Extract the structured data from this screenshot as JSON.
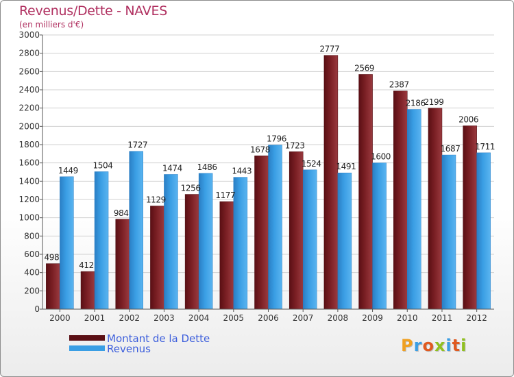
{
  "header": {
    "title": "Revenus/Dette - NAVES",
    "subtitle": "(en milliers d'€)"
  },
  "colors": {
    "dette": "#7a1f24",
    "revenus": "#3a9ee4",
    "title": "#b03060",
    "legend_text": "#3c5edc"
  },
  "chart_data": {
    "type": "bar",
    "title": "Revenus/Dette - NAVES",
    "subtitle": "(en milliers d'€)",
    "categories": [
      "2000",
      "2001",
      "2002",
      "2003",
      "2004",
      "2005",
      "2006",
      "2007",
      "2008",
      "2009",
      "2010",
      "2011",
      "2012"
    ],
    "series": [
      {
        "name": "Montant de la Dette",
        "values": [
          498,
          412,
          984,
          1129,
          1256,
          1177,
          1678,
          1723,
          2777,
          2569,
          2387,
          2199,
          2006
        ]
      },
      {
        "name": "Revenus",
        "values": [
          1449,
          1504,
          1727,
          1474,
          1486,
          1443,
          1796,
          1524,
          1491,
          1600,
          2186,
          1687,
          1711
        ]
      }
    ],
    "ylim": [
      0,
      3000
    ],
    "yticks": [
      0,
      200,
      400,
      600,
      800,
      1000,
      1200,
      1400,
      1600,
      1800,
      2000,
      2200,
      2400,
      2600,
      2800,
      3000
    ],
    "grid": true,
    "legend_position": "bottom-left"
  },
  "legend": {
    "items": [
      {
        "label": "Montant de la Dette"
      },
      {
        "label": "Revenus"
      }
    ]
  },
  "logo": {
    "letters": [
      "P",
      "r",
      "o",
      "x",
      "i",
      "t",
      "i"
    ]
  }
}
